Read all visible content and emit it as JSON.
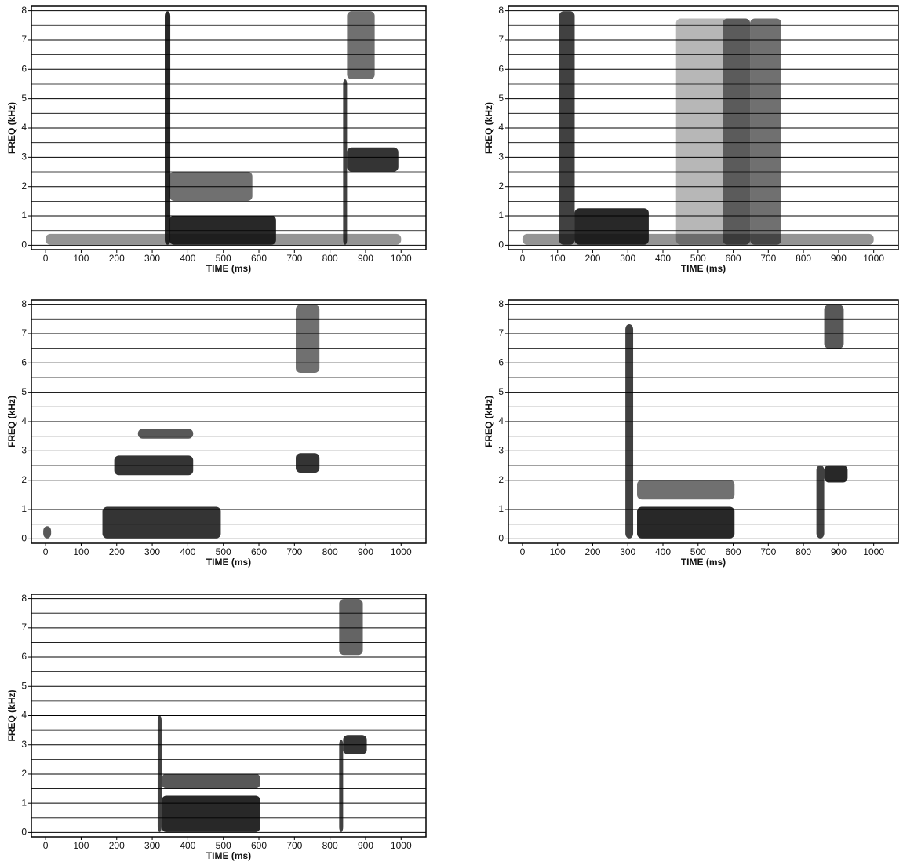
{
  "chart_data": [
    {
      "type": "spectrogram",
      "xlabel": "TIME (ms)",
      "ylabel": "FREQ (kHz)",
      "xlim": [
        -40,
        1070
      ],
      "ylim": [
        -0.15,
        8.15
      ],
      "xticks": [
        0,
        100,
        200,
        300,
        400,
        500,
        600,
        700,
        800,
        900,
        1000
      ],
      "yticks": [
        0,
        1,
        2,
        3,
        4,
        5,
        6,
        7,
        8
      ],
      "grid": true
    },
    {
      "type": "spectrogram",
      "xlabel": "TIME (ms)",
      "ylabel": "FREQ (kHz)",
      "xlim": [
        -40,
        1070
      ],
      "ylim": [
        -0.15,
        8.15
      ],
      "xticks": [
        0,
        100,
        200,
        300,
        400,
        500,
        600,
        700,
        800,
        900,
        1000
      ],
      "yticks": [
        0,
        1,
        2,
        3,
        4,
        5,
        6,
        7,
        8
      ],
      "grid": true
    },
    {
      "type": "spectrogram",
      "xlabel": "TIME (ms)",
      "ylabel": "FREQ (kHz)",
      "xlim": [
        -40,
        1070
      ],
      "ylim": [
        -0.15,
        8.15
      ],
      "xticks": [
        0,
        100,
        200,
        300,
        400,
        500,
        600,
        700,
        800,
        900,
        1000
      ],
      "yticks": [
        0,
        1,
        2,
        3,
        4,
        5,
        6,
        7,
        8
      ],
      "grid": true
    },
    {
      "type": "spectrogram",
      "xlabel": "TIME (ms)",
      "ylabel": "FREQ (kHz)",
      "xlim": [
        -40,
        1070
      ],
      "ylim": [
        -0.15,
        8.15
      ],
      "xticks": [
        0,
        100,
        200,
        300,
        400,
        500,
        600,
        700,
        800,
        900,
        1000
      ],
      "yticks": [
        0,
        1,
        2,
        3,
        4,
        5,
        6,
        7,
        8
      ],
      "grid": true
    },
    {
      "type": "spectrogram",
      "xlabel": "TIME (ms)",
      "ylabel": "FREQ (kHz)",
      "xlim": [
        -40,
        1070
      ],
      "ylim": [
        -0.15,
        8.15
      ],
      "xticks": [
        0,
        100,
        200,
        300,
        400,
        500,
        600,
        700,
        800,
        900,
        1000
      ],
      "yticks": [
        0,
        1,
        2,
        3,
        4,
        5,
        6,
        7,
        8
      ],
      "grid": true
    }
  ]
}
